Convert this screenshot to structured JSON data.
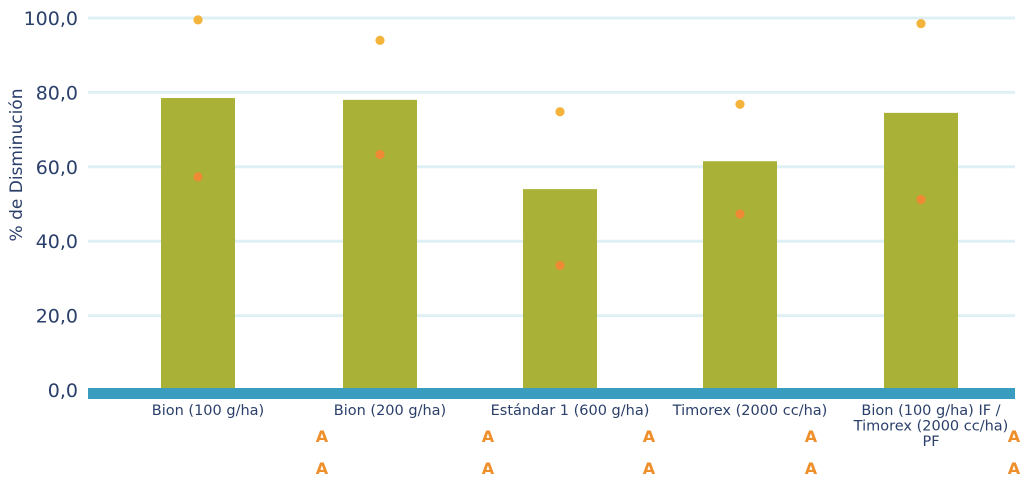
{
  "chart_data": {
    "type": "bar",
    "ylabel": "% de Disminución",
    "ylim": [
      0,
      100
    ],
    "yticks": [
      "0,0",
      "20,0",
      "40,0",
      "60,0",
      "80,0",
      "100,0"
    ],
    "ytick_values": [
      0,
      20,
      40,
      60,
      80,
      100
    ],
    "grid": true,
    "categories": [
      [
        "Bion (100 g/ha)"
      ],
      [
        "Bion (200 g/ha)"
      ],
      [
        "Estándar 1 (600 g/ha)"
      ],
      [
        "Timorex (2000 cc/ha)"
      ],
      [
        "Bion (100 g/ha) IF /",
        "Timorex (2000 cc/ha)",
        "PF"
      ]
    ],
    "series": [
      {
        "values": [
          78.5,
          78.0,
          54.0,
          61.5,
          74.5
        ],
        "color": "#a9b237",
        "kind": "bar"
      },
      {
        "values": [
          99.5,
          94.0,
          74.8,
          76.8,
          98.5
        ],
        "color": "#f4b33a",
        "kind": "point"
      },
      {
        "values": [
          57.3,
          63.3,
          33.5,
          47.3,
          51.2
        ],
        "color": "#ee8a35",
        "kind": "point"
      }
    ],
    "significance_rows": [
      [
        "A",
        "A",
        "A",
        "A",
        "A"
      ],
      [
        "A",
        "A",
        "A",
        "A",
        "A"
      ]
    ],
    "colors": {
      "axis_base": "#3a9cbf",
      "gridline": "#dff0f5",
      "text": "#2a3f6a",
      "significance": "#ee8f2a"
    }
  }
}
